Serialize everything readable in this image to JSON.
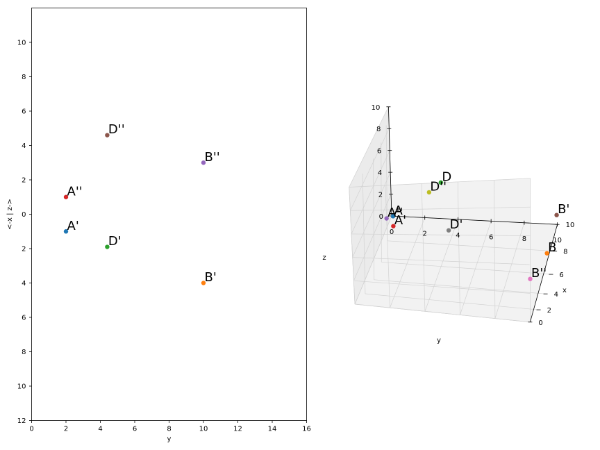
{
  "chart_data": [
    {
      "type": "scatter",
      "panel": "2d-projection",
      "xlabel": "y",
      "ylabel": "<-x | z->",
      "xlim": [
        0,
        16
      ],
      "ylim": [
        -12,
        12
      ],
      "x_ticks": [
        0,
        2,
        4,
        6,
        8,
        10,
        12,
        14,
        16
      ],
      "y_ticks": [
        -12,
        -10,
        -8,
        -6,
        -4,
        -2,
        0,
        2,
        4,
        6,
        8,
        10
      ],
      "y_tick_labels": [
        "12",
        "10",
        "8",
        "6",
        "4",
        "2",
        "0",
        "2",
        "4",
        "6",
        "8",
        "10"
      ],
      "grid": false,
      "points": [
        {
          "label": "A'",
          "x": 2,
          "y": -1,
          "color": "#1f77b4"
        },
        {
          "label": "B'",
          "x": 10,
          "y": -4,
          "color": "#ff7f0e"
        },
        {
          "label": "D'",
          "x": 4.4,
          "y": -1.9,
          "color": "#2ca02c"
        },
        {
          "label": "A''",
          "x": 2,
          "y": 1,
          "color": "#d62728"
        },
        {
          "label": "B''",
          "x": 10,
          "y": 3,
          "color": "#9467bd"
        },
        {
          "label": "D''",
          "x": 4.4,
          "y": 4.6,
          "color": "#8c564b"
        }
      ]
    },
    {
      "type": "scatter",
      "panel": "3d-view",
      "xlabel": "x",
      "ylabel": "y",
      "zlabel": "z",
      "xlim": [
        0,
        10
      ],
      "ylim": [
        0,
        10
      ],
      "zlim": [
        0,
        10
      ],
      "x_ticks": [
        0,
        2,
        4,
        6,
        8,
        10
      ],
      "y_ticks": [
        0,
        2,
        4,
        6,
        8,
        10
      ],
      "z_ticks": [
        0,
        2,
        4,
        6,
        8,
        10
      ],
      "grid": true,
      "points": [
        {
          "label": "A",
          "x": 1,
          "y": 2,
          "z": 7,
          "color": "#1f77b4"
        },
        {
          "label": "B",
          "x": 4,
          "y": 10,
          "z": 3,
          "color": "#ff7f0e"
        },
        {
          "label": "D",
          "x": 1.9,
          "y": 4.4,
          "z": 9.2,
          "color": "#2ca02c"
        },
        {
          "label": "A'",
          "x": 1,
          "y": 2,
          "z": 6.2,
          "color": "#d62728"
        },
        {
          "label": "A''",
          "x": 0,
          "y": 2,
          "z": 7.3,
          "color": "#9467bd"
        },
        {
          "label": "B'",
          "x": 8.5,
          "y": 10,
          "z": 2.6,
          "color": "#8c564b"
        },
        {
          "label": "B''",
          "x": 0,
          "y": 10,
          "z": 3,
          "color": "#e377c2"
        },
        {
          "label": "D'",
          "x": 3.6,
          "y": 4.4,
          "z": 4.6,
          "color": "#7f7f7f"
        },
        {
          "label": "D''",
          "x": 0,
          "y": 4.4,
          "z": 9.3,
          "color": "#bcbd22"
        }
      ]
    }
  ]
}
